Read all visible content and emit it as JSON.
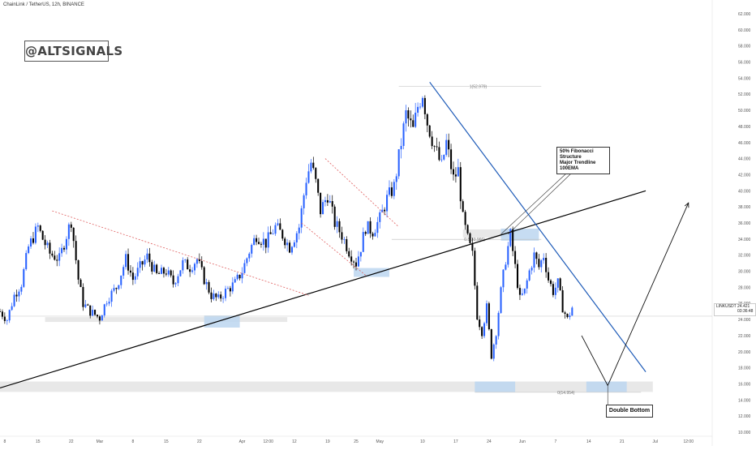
{
  "header": {
    "chart_title": "ChainLink / TetherUS, 12h, BINANCE",
    "brand_watermark": "@ALTSIGNALS"
  },
  "price_tag": {
    "symbol": "LINKUSDT",
    "price": "24.421",
    "countdown": "03:36:48"
  },
  "annotations": {
    "callout_lines": [
      "50% Fibonacci",
      "Structure",
      "Major Trendline",
      "100EMA"
    ],
    "double_bottom_label": "Double Bottom",
    "fib_levels": [
      {
        "label": "1(52.979)",
        "value": 52.979
      },
      {
        "label": "0.5(33.966)",
        "value": 33.966
      },
      {
        "label": "0(14.954)",
        "value": 14.954
      }
    ]
  },
  "colors": {
    "up_candle": "#2962ff",
    "down_candle": "#000000",
    "trendline_black": "#000000",
    "trendline_blue": "#1e5bb8",
    "dotted_red": "#e06060",
    "zone_blue": "#bcd6f0",
    "zone_gray": "#e6e6e6"
  },
  "chart_data": {
    "type": "candlestick",
    "title": "ChainLink / TetherUS, 12h, BINANCE",
    "y_ticks": [
      "62.000",
      "60.000",
      "58.000",
      "56.000",
      "54.000",
      "52.000",
      "50.000",
      "48.000",
      "46.000",
      "44.000",
      "42.000",
      "40.000",
      "38.000",
      "36.000",
      "34.000",
      "32.000",
      "30.000",
      "28.000",
      "26.000",
      "24.000",
      "22.000",
      "20.000",
      "18.000",
      "16.000",
      "14.000",
      "12.000",
      "10.000"
    ],
    "ylim": [
      9.5,
      62.5
    ],
    "x_ticks": [
      {
        "label": "8",
        "i": 2
      },
      {
        "label": "15",
        "i": 16
      },
      {
        "label": "22",
        "i": 30
      },
      {
        "label": "Mar",
        "i": 42
      },
      {
        "label": "8",
        "i": 56
      },
      {
        "label": "15",
        "i": 70
      },
      {
        "label": "22",
        "i": 84
      },
      {
        "label": "Apr",
        "i": 102
      },
      {
        "label": "12:00",
        "i": 113
      },
      {
        "label": "12",
        "i": 124
      },
      {
        "label": "19",
        "i": 138
      },
      {
        "label": "25",
        "i": 150
      },
      {
        "label": "May",
        "i": 160
      },
      {
        "label": "10",
        "i": 178
      },
      {
        "label": "17",
        "i": 192
      },
      {
        "label": "24",
        "i": 206
      },
      {
        "label": "Jun",
        "i": 220
      },
      {
        "label": "7",
        "i": 234
      },
      {
        "label": "14",
        "i": 248
      },
      {
        "label": "21",
        "i": 262
      },
      {
        "label": "Jul",
        "i": 276
      },
      {
        "label": "12:00",
        "i": 290
      }
    ],
    "x_index_range": [
      0,
      300
    ],
    "close_path": [
      [
        0,
        25.0
      ],
      [
        3,
        24.0
      ],
      [
        6,
        27.0
      ],
      [
        9,
        28.5
      ],
      [
        12,
        33.0
      ],
      [
        16,
        35.5
      ],
      [
        18,
        34.0
      ],
      [
        21,
        32.2
      ],
      [
        25,
        31.5
      ],
      [
        28,
        34.5
      ],
      [
        30,
        36.3
      ],
      [
        33,
        29.0
      ],
      [
        35,
        26.0
      ],
      [
        38,
        25.0
      ],
      [
        42,
        24.2
      ],
      [
        45,
        26.5
      ],
      [
        49,
        28.0
      ],
      [
        53,
        31.5
      ],
      [
        56,
        29.0
      ],
      [
        59,
        30.5
      ],
      [
        62,
        31.8
      ],
      [
        66,
        29.5
      ],
      [
        70,
        30.0
      ],
      [
        73,
        28.5
      ],
      [
        77,
        31.0
      ],
      [
        80,
        30.5
      ],
      [
        83,
        31.5
      ],
      [
        86,
        29.0
      ],
      [
        89,
        27.0
      ],
      [
        92,
        26.5
      ],
      [
        95,
        27.5
      ],
      [
        99,
        28.5
      ],
      [
        102,
        30.0
      ],
      [
        105,
        32.5
      ],
      [
        108,
        34.5
      ],
      [
        112,
        33.5
      ],
      [
        116,
        35.5
      ],
      [
        119,
        34.5
      ],
      [
        122,
        33.0
      ],
      [
        126,
        35.5
      ],
      [
        129,
        41.5
      ],
      [
        131,
        43.5
      ],
      [
        133,
        41.0
      ],
      [
        135,
        37.5
      ],
      [
        138,
        39.5
      ],
      [
        141,
        36.0
      ],
      [
        144,
        34.5
      ],
      [
        147,
        32.5
      ],
      [
        150,
        31.0
      ],
      [
        152,
        33.0
      ],
      [
        154,
        35.5
      ],
      [
        157,
        35.0
      ],
      [
        160,
        36.5
      ],
      [
        163,
        39.0
      ],
      [
        166,
        40.5
      ],
      [
        169,
        46.0
      ],
      [
        171,
        49.5
      ],
      [
        174,
        47.5
      ],
      [
        176,
        50.5
      ],
      [
        178,
        52.2
      ],
      [
        180,
        48.5
      ],
      [
        183,
        45.5
      ],
      [
        186,
        43.0
      ],
      [
        188,
        46.0
      ],
      [
        191,
        41.5
      ],
      [
        193,
        42.5
      ],
      [
        195,
        36.5
      ],
      [
        197,
        34.0
      ],
      [
        199,
        32.0
      ],
      [
        201,
        24.5
      ],
      [
        203,
        22.5
      ],
      [
        205,
        25.5
      ],
      [
        207,
        19.5
      ],
      [
        209,
        22.5
      ],
      [
        211,
        27.5
      ],
      [
        213,
        31.5
      ],
      [
        215,
        34.5
      ],
      [
        217,
        30.5
      ],
      [
        219,
        26.5
      ],
      [
        221,
        27.5
      ],
      [
        223,
        30.0
      ],
      [
        225,
        32.0
      ],
      [
        227,
        30.5
      ],
      [
        229,
        32.0
      ],
      [
        231,
        29.0
      ],
      [
        233,
        27.5
      ],
      [
        235,
        28.5
      ],
      [
        237,
        25.5
      ],
      [
        239,
        24.0
      ],
      [
        241,
        25.5
      ]
    ],
    "trendlines": [
      {
        "name": "major-support",
        "color": "black",
        "from": [
          0,
          15.5
        ],
        "to": [
          272,
          40.0
        ]
      },
      {
        "name": "descending-resistance",
        "color": "blue",
        "from": [
          181,
          53.5
        ],
        "to": [
          272,
          17.5
        ]
      },
      {
        "name": "early-descending",
        "color": "dotted-red",
        "from": [
          22,
          37.5
        ],
        "to": [
          130,
          27.0
        ]
      },
      {
        "name": "channel-upper",
        "color": "dotted-red",
        "from": [
          137,
          44.0
        ],
        "to": [
          168,
          35.5
        ]
      },
      {
        "name": "channel-lower",
        "color": "dotted-red",
        "from": [
          127,
          36.0
        ],
        "to": [
          154,
          29.5
        ]
      }
    ],
    "projection": [
      [
        245,
        22.0
      ],
      [
        256,
        15.8
      ],
      [
        290,
        38.5
      ]
    ],
    "zones": [
      {
        "from_i": 19,
        "to_i": 121,
        "y_from": 23.7,
        "y_to": 24.3,
        "color": "gray"
      },
      {
        "from_i": 86,
        "to_i": 101,
        "y_from": 23.0,
        "y_to": 24.5,
        "color": "blue"
      },
      {
        "from_i": 149,
        "to_i": 164,
        "y_from": 29.3,
        "y_to": 30.4,
        "color": "blue"
      },
      {
        "from_i": 195,
        "to_i": 217,
        "y_from": 34.2,
        "y_to": 35.2,
        "color": "gray"
      },
      {
        "from_i": 211,
        "to_i": 227,
        "y_from": 33.8,
        "y_to": 35.3,
        "color": "blue"
      },
      {
        "from_i": 0,
        "to_i": 275,
        "y_from": 15.0,
        "y_to": 16.3,
        "color": "gray"
      },
      {
        "from_i": 200,
        "to_i": 217,
        "y_from": 15.0,
        "y_to": 16.3,
        "color": "blue"
      },
      {
        "from_i": 247,
        "to_i": 264,
        "y_from": 15.0,
        "y_to": 16.3,
        "color": "blue"
      }
    ],
    "current_price": 24.421
  }
}
